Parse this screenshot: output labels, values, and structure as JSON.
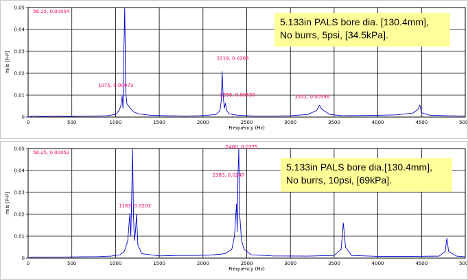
{
  "colors": {
    "trace": "#0000cc",
    "annotation": "#ff0066",
    "grid": "#000000",
    "note_bg": "#ffff99"
  },
  "chart_data": [
    {
      "type": "line",
      "note_lines": [
        "5.133in PALS bore dia. [130.4mm],",
        "No burrs, 5psi, [34.5kPa]."
      ],
      "xlabel": "Frequency (Hz)",
      "ylabel": "mils [P-P]",
      "xlim": [
        0,
        5000
      ],
      "ylim": [
        0,
        0.05
      ],
      "xticks": [
        "0",
        "500",
        "1000",
        "1500",
        "2000",
        "2500",
        "3000",
        "3500",
        "4000",
        "4500",
        "5000"
      ],
      "yticks": [
        "0",
        "0.01",
        "0.02",
        "0.03",
        "0.04",
        "0.05"
      ],
      "grid": true,
      "cursor_label": "56.25, 0.00054",
      "annotations": [
        {
          "text": "1075, 0.00973",
          "x": 1075,
          "y": 0.00973
        },
        {
          "text": "2219, 0.0208",
          "x": 2219,
          "y": 0.0208
        },
        {
          "text": "2256, 0.00630",
          "x": 2256,
          "y": 0.0063
        },
        {
          "text": "3331, 0.00548",
          "x": 3331,
          "y": 0.00548
        }
      ],
      "series": [
        {
          "values": [
            [
              0,
              0
            ],
            [
              60,
              0.0005
            ],
            [
              150,
              0.0003
            ],
            [
              300,
              0.0004
            ],
            [
              450,
              0.0003
            ],
            [
              600,
              0.0004
            ],
            [
              750,
              0.0005
            ],
            [
              900,
              0.0006
            ],
            [
              1000,
              0.0012
            ],
            [
              1040,
              0.003
            ],
            [
              1060,
              0.005
            ],
            [
              1075,
              0.00973
            ],
            [
              1085,
              0.004
            ],
            [
              1095,
              0.03
            ],
            [
              1105,
              0.05
            ],
            [
              1115,
              0.012
            ],
            [
              1130,
              0.006
            ],
            [
              1160,
              0.0045
            ],
            [
              1200,
              0.0025
            ],
            [
              1260,
              0.0015
            ],
            [
              1400,
              0.0008
            ],
            [
              1600,
              0.0006
            ],
            [
              1800,
              0.0005
            ],
            [
              1950,
              0.0006
            ],
            [
              2050,
              0.0008
            ],
            [
              2150,
              0.0012
            ],
            [
              2195,
              0.003
            ],
            [
              2210,
              0.008
            ],
            [
              2219,
              0.0208
            ],
            [
              2230,
              0.01
            ],
            [
              2245,
              0.004
            ],
            [
              2256,
              0.0063
            ],
            [
              2270,
              0.003
            ],
            [
              2300,
              0.0015
            ],
            [
              2400,
              0.0008
            ],
            [
              2600,
              0.0005
            ],
            [
              2800,
              0.0005
            ],
            [
              3000,
              0.0006
            ],
            [
              3200,
              0.0012
            ],
            [
              3300,
              0.003
            ],
            [
              3331,
              0.00548
            ],
            [
              3360,
              0.0035
            ],
            [
              3400,
              0.0025
            ],
            [
              3450,
              0.0012
            ],
            [
              3600,
              0.0006
            ],
            [
              3800,
              0.0007
            ],
            [
              4000,
              0.0008
            ],
            [
              4200,
              0.001
            ],
            [
              4400,
              0.0018
            ],
            [
              4460,
              0.0035
            ],
            [
              4480,
              0.0055
            ],
            [
              4500,
              0.002
            ],
            [
              4600,
              0.0008
            ],
            [
              4800,
              0.0006
            ],
            [
              5000,
              0.0005
            ]
          ]
        }
      ]
    },
    {
      "type": "line",
      "note_lines": [
        "5.133in PALS bore dia.[130.4mm],",
        "No burrs, 10psi, [69kPa]."
      ],
      "xlabel": "Frequency (Hz)",
      "ylabel": "mils [P-P]",
      "xlim": [
        0,
        5000
      ],
      "ylim": [
        0,
        0.05
      ],
      "xticks": [
        "0",
        "500",
        "1000",
        "1500",
        "2000",
        "2500",
        "3000",
        "3500",
        "4000",
        "4500",
        "5000"
      ],
      "yticks": [
        "0",
        "0.01",
        "0.02",
        "0.03",
        "0.04",
        "0.05"
      ],
      "grid": true,
      "cursor_label": "56.25, 0.00052",
      "annotations": [
        {
          "text": "1163, 0.0203",
          "x": 1163,
          "y": 0.0203
        },
        {
          "text": "2400, 0.0375",
          "x": 2400,
          "y": 0.0375
        },
        {
          "text": "2383, 0.0247",
          "x": 2383,
          "y": 0.0247
        }
      ],
      "series": [
        {
          "values": [
            [
              0,
              0
            ],
            [
              60,
              0.0005
            ],
            [
              200,
              0.0004
            ],
            [
              400,
              0.0005
            ],
            [
              600,
              0.0006
            ],
            [
              800,
              0.0007
            ],
            [
              950,
              0.0009
            ],
            [
              1050,
              0.0015
            ],
            [
              1100,
              0.003
            ],
            [
              1140,
              0.008
            ],
            [
              1163,
              0.0203
            ],
            [
              1175,
              0.01
            ],
            [
              1185,
              0.03
            ],
            [
              1195,
              0.05
            ],
            [
              1205,
              0.02
            ],
            [
              1215,
              0.008
            ],
            [
              1228,
              0.012
            ],
            [
              1240,
              0.02
            ],
            [
              1255,
              0.006
            ],
            [
              1300,
              0.002
            ],
            [
              1500,
              0.001
            ],
            [
              1700,
              0.0012
            ],
            [
              1900,
              0.0012
            ],
            [
              2100,
              0.0014
            ],
            [
              2250,
              0.002
            ],
            [
              2330,
              0.004
            ],
            [
              2360,
              0.01
            ],
            [
              2383,
              0.0247
            ],
            [
              2392,
              0.012
            ],
            [
              2400,
              0.0375
            ],
            [
              2410,
              0.05
            ],
            [
              2420,
              0.02
            ],
            [
              2440,
              0.008
            ],
            [
              2470,
              0.004
            ],
            [
              2550,
              0.0015
            ],
            [
              2800,
              0.001
            ],
            [
              3200,
              0.0009
            ],
            [
              3500,
              0.0012
            ],
            [
              3580,
              0.004
            ],
            [
              3605,
              0.016
            ],
            [
              3630,
              0.005
            ],
            [
              3700,
              0.0012
            ],
            [
              4000,
              0.0008
            ],
            [
              4400,
              0.0008
            ],
            [
              4700,
              0.0009
            ],
            [
              4770,
              0.003
            ],
            [
              4790,
              0.009
            ],
            [
              4810,
              0.003
            ],
            [
              4900,
              0.0009
            ],
            [
              5000,
              0.0006
            ]
          ]
        }
      ]
    }
  ]
}
